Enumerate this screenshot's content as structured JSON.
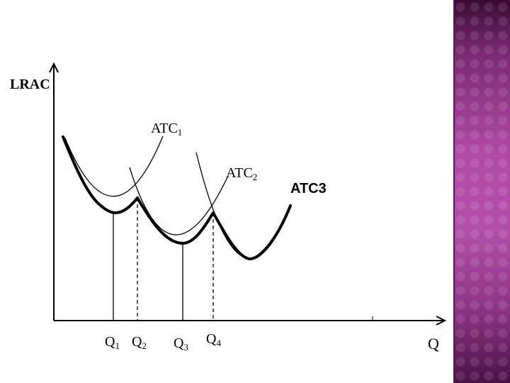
{
  "diagram": {
    "y_axis_label": "LRAC",
    "x_axis_label": "Q",
    "curves": [
      {
        "name": "ATC",
        "subscript": "1"
      },
      {
        "name": "ATC",
        "subscript": "2"
      },
      {
        "name": "ATC3",
        "subscript": ""
      }
    ],
    "quantity_marks": [
      {
        "name": "Q",
        "subscript": "1"
      },
      {
        "name": "Q",
        "subscript": "2"
      },
      {
        "name": "Q",
        "subscript": "3"
      },
      {
        "name": "Q",
        "subscript": "4"
      }
    ]
  },
  "colors": {
    "ink": "#000000",
    "accent_strip": "#b04aa6"
  }
}
